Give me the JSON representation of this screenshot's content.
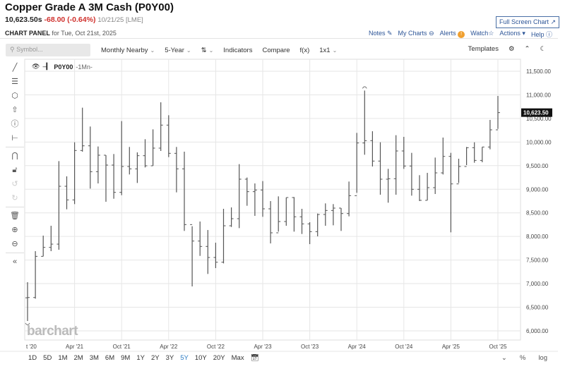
{
  "header": {
    "title": "Copper Grade A 3M Cash (P0Y00)",
    "last": "10,623.50s",
    "change": "-68.00 (-0.64%)",
    "date": "10/21/25 [LME]",
    "panel_label": "CHART PANEL",
    "panel_date": "for Tue, Oct 21st, 2025",
    "full_screen": "Full Screen Chart ↗"
  },
  "links": {
    "notes": "Notes",
    "my_charts": "My Charts",
    "alerts": "Alerts",
    "watch": "Watch",
    "actions": "Actions",
    "help": "Help"
  },
  "toolbar": {
    "search_placeholder": "Symbol...",
    "interval": "Monthly Nearby",
    "range": "5-Year",
    "indicators": "Indicators",
    "compare": "Compare",
    "fx": "f(x)",
    "layout": "1x1",
    "templates": "Templates"
  },
  "legend": {
    "symbol": "P0Y00",
    "period": "-1Mn-"
  },
  "logo": "barchart",
  "bottom": {
    "ranges": [
      "1D",
      "5D",
      "1M",
      "2M",
      "3M",
      "6M",
      "9M",
      "1Y",
      "2Y",
      "3Y",
      "5Y",
      "10Y",
      "20Y",
      "Max"
    ],
    "active": "5Y",
    "percent": "%",
    "log": "log"
  },
  "chart_data": {
    "type": "ohlc",
    "interval": "monthly",
    "start": "2020-10",
    "ylim": [
      5900,
      11700
    ],
    "yticks": [
      6000,
      6500,
      7000,
      7500,
      8000,
      8500,
      9000,
      9500,
      10000,
      10500,
      11000,
      11500
    ],
    "ytick_labels": [
      "6,000.00",
      "6,500.00",
      "7,000.00",
      "7,500.00",
      "8,000.00",
      "8,500.00",
      "9,000.00",
      "9,500.00",
      "10,000.00",
      "10,500.00",
      "11,000.00",
      "11,500.00"
    ],
    "xtick_labels": [
      "t '20",
      "Apr '21",
      "Oct '21",
      "Apr '22",
      "Oct '22",
      "Apr '23",
      "Oct '23",
      "Apr '24",
      "Oct '24",
      "Apr '25",
      "Oct '25"
    ],
    "xtick_index": [
      0,
      6,
      12,
      18,
      24,
      30,
      36,
      42,
      48,
      54,
      60
    ],
    "last_price_label": "10,623.50",
    "grid": true,
    "bars": [
      [
        6700,
        7030,
        6208,
        6706
      ],
      [
        6706,
        7688,
        6681,
        7578
      ],
      [
        7578,
        8017,
        7578,
        7768
      ],
      [
        7768,
        8226,
        7688,
        7837
      ],
      [
        7837,
        9596,
        7718,
        9063
      ],
      [
        9063,
        9273,
        8575,
        8774
      ],
      [
        8774,
        9995,
        8685,
        9821
      ],
      [
        9821,
        10728,
        9796,
        9920
      ],
      [
        9920,
        10329,
        9013,
        9372
      ],
      [
        9372,
        9906,
        9123,
        9721
      ],
      [
        9721,
        9721,
        8735,
        9512
      ],
      [
        9512,
        9746,
        8799,
        8934
      ],
      [
        8934,
        10444,
        8874,
        9482
      ],
      [
        9482,
        9896,
        9313,
        9432
      ],
      [
        9432,
        9781,
        9133,
        9711
      ],
      [
        9711,
        10060,
        9462,
        9497
      ],
      [
        9497,
        10269,
        9497,
        9871
      ],
      [
        9871,
        10842,
        9811,
        10359
      ],
      [
        10359,
        10568,
        9681,
        9761
      ],
      [
        9761,
        9896,
        8934,
        9432
      ],
      [
        9432,
        9796,
        8117,
        8251
      ],
      [
        8251,
        8216,
        6941,
        7902
      ],
      [
        7902,
        8316,
        7588,
        7788
      ],
      [
        7788,
        8136,
        7205,
        7554
      ],
      [
        7554,
        7867,
        7329,
        7454
      ],
      [
        7454,
        8585,
        7429,
        8226
      ],
      [
        8226,
        8615,
        8201,
        8376
      ],
      [
        8376,
        9532,
        8176,
        9213
      ],
      [
        9213,
        9248,
        8650,
        8949
      ],
      [
        8949,
        9123,
        8436,
        8984
      ],
      [
        8984,
        9173,
        8416,
        8585
      ],
      [
        8585,
        8749,
        7852,
        8077
      ],
      [
        8077,
        8849,
        8102,
        8316
      ],
      [
        8316,
        8824,
        8226,
        8824
      ],
      [
        8824,
        8834,
        8102,
        8416
      ],
      [
        8416,
        8585,
        8052,
        8266
      ],
      [
        8266,
        8301,
        7837,
        8102
      ],
      [
        8102,
        8485,
        8002,
        8465
      ],
      [
        8465,
        8700,
        8226,
        8550
      ],
      [
        8550,
        8685,
        8236,
        8600
      ],
      [
        8600,
        8600,
        8117,
        8485
      ],
      [
        8485,
        9163,
        8426,
        8864
      ],
      [
        8864,
        10194,
        8924,
        9980
      ],
      [
        9980,
        11091,
        9731,
        10030
      ],
      [
        10030,
        10229,
        9482,
        9597
      ],
      [
        9597,
        9995,
        8884,
        9213
      ],
      [
        9213,
        9432,
        8715,
        9223
      ],
      [
        9223,
        10145,
        8884,
        9811
      ],
      [
        9811,
        10110,
        9432,
        9492
      ],
      [
        9492,
        9771,
        8864,
        8999
      ],
      [
        8999,
        9298,
        8750,
        8765
      ],
      [
        8765,
        9347,
        8765,
        9034
      ],
      [
        9034,
        9671,
        8899,
        9347
      ],
      [
        9347,
        10095,
        9313,
        9696
      ],
      [
        9696,
        9771,
        8087,
        9113
      ],
      [
        9113,
        9646,
        9133,
        9482
      ],
      [
        9482,
        9895,
        9512,
        9880
      ],
      [
        9880,
        9995,
        9562,
        9611
      ],
      [
        9611,
        9895,
        9572,
        9895
      ],
      [
        9895,
        10469,
        9846,
        10259
      ],
      [
        10259,
        10977,
        10279,
        10623.5
      ]
    ]
  }
}
